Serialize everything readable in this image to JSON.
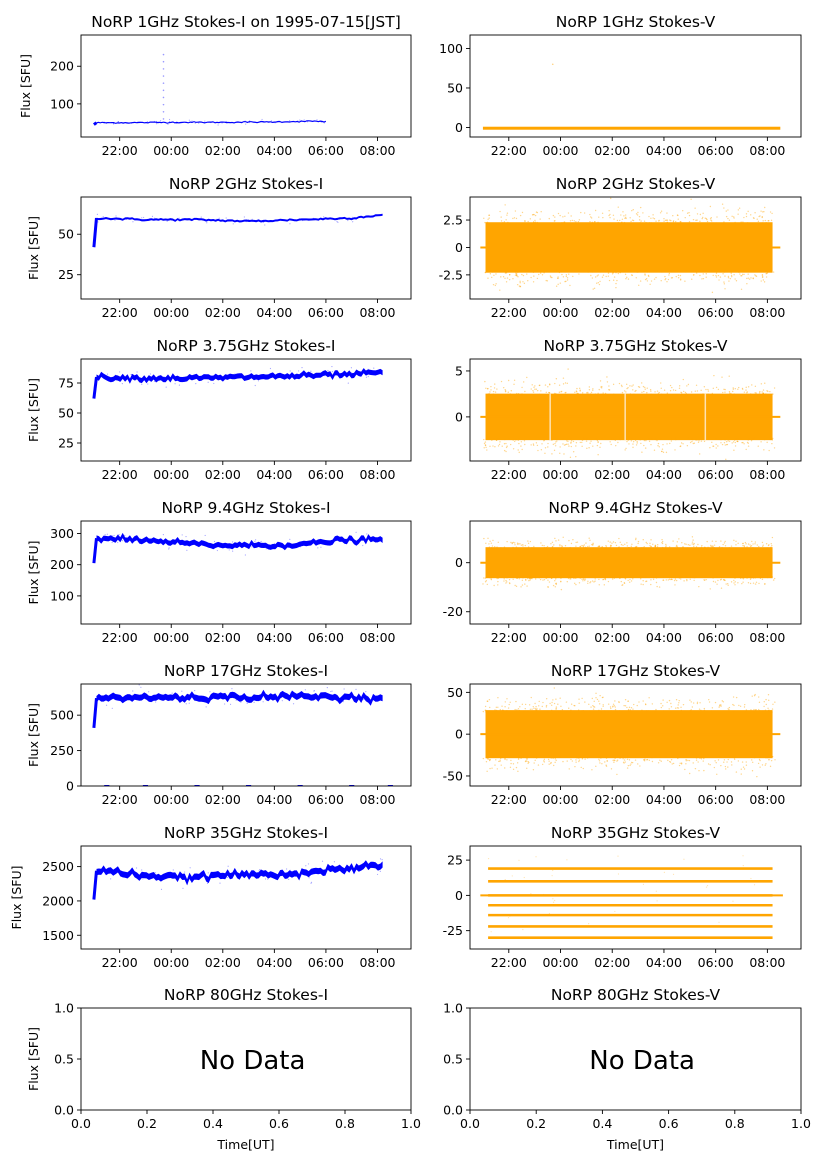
{
  "figure": {
    "x_axis_label": "Time[UT]",
    "no_data_text": "No Data",
    "colors": {
      "stokes_i": "#0000ff",
      "stokes_v": "#ffa500"
    }
  },
  "chart_data": [
    {
      "type": "scatter",
      "title": "NoRP 1GHz Stokes-I on 1995-07-15[JST]",
      "ylabel": "Flux [SFU]",
      "xticks": [
        "22:00",
        "00:00",
        "02:00",
        "04:00",
        "06:00",
        "08:00"
      ],
      "xlim": [
        -3.5,
        9.3
      ],
      "ylim": [
        12,
        283
      ],
      "yticks": [
        100,
        200
      ],
      "series": [
        {
          "x": [
            -3.0,
            -2.9,
            -1.5,
            0,
            2,
            4,
            5.5,
            6.0
          ],
          "y": [
            45,
            50,
            50,
            51,
            51,
            52,
            54,
            53
          ]
        }
      ]
    },
    {
      "type": "scatter",
      "title": "NoRP 1GHz Stokes-V",
      "ylabel": "",
      "xticks": [
        "22:00",
        "00:00",
        "02:00",
        "04:00",
        "06:00",
        "08:00"
      ],
      "xlim": [
        -3.5,
        9.3
      ],
      "ylim": [
        -12,
        117
      ],
      "yticks": [
        0,
        50,
        100
      ],
      "series": [
        {
          "x": [
            -3.0,
            0,
            2,
            4,
            5.5,
            6.5,
            8.5
          ],
          "y": [
            -1,
            -1,
            -1,
            -1,
            1,
            0,
            0
          ]
        }
      ]
    },
    {
      "type": "scatter",
      "title": "NoRP 2GHz Stokes-I",
      "ylabel": "Flux [SFU]",
      "xticks": [
        "22:00",
        "00:00",
        "02:00",
        "04:00",
        "06:00",
        "08:00"
      ],
      "xlim": [
        -3.5,
        9.3
      ],
      "ylim": [
        10,
        73
      ],
      "yticks": [
        25,
        50
      ],
      "series": [
        {
          "x": [
            -3.0,
            -2.9,
            -1,
            1,
            3,
            5,
            7,
            8.2
          ],
          "y": [
            42,
            60,
            59,
            59,
            58,
            59,
            60,
            62
          ]
        }
      ]
    },
    {
      "type": "scatter",
      "title": "NoRP 2GHz Stokes-V",
      "ylabel": "",
      "xticks": [
        "22:00",
        "00:00",
        "02:00",
        "04:00",
        "06:00",
        "08:00"
      ],
      "xlim": [
        -3.5,
        9.3
      ],
      "ylim": [
        -4.7,
        4.6
      ],
      "yticks": [
        2.5,
        0.0,
        -2.5
      ],
      "series": [
        {
          "x": [
            -3.0,
            8.2
          ],
          "y": [
            0,
            0
          ]
        }
      ]
    },
    {
      "type": "scatter",
      "title": "NoRP 3.75GHz Stokes-I",
      "ylabel": "Flux [SFU]",
      "xticks": [
        "22:00",
        "00:00",
        "02:00",
        "04:00",
        "06:00",
        "08:00"
      ],
      "xlim": [
        -3.5,
        9.3
      ],
      "ylim": [
        10,
        95
      ],
      "yticks": [
        25,
        50,
        75
      ],
      "series": [
        {
          "x": [
            -3.0,
            -2.9,
            -1,
            1,
            3,
            5,
            7,
            8.2
          ],
          "y": [
            62,
            80,
            79,
            79,
            80,
            81,
            82,
            84
          ]
        }
      ]
    },
    {
      "type": "scatter",
      "title": "NoRP 3.75GHz Stokes-V",
      "ylabel": "",
      "xticks": [
        "22:00",
        "00:00",
        "02:00",
        "04:00",
        "06:00",
        "08:00"
      ],
      "xlim": [
        -3.5,
        9.3
      ],
      "ylim": [
        -4.8,
        6.3
      ],
      "yticks": [
        5,
        0
      ],
      "series": [
        {
          "x": [
            -3.0,
            8.2
          ],
          "y": [
            0,
            0
          ]
        }
      ]
    },
    {
      "type": "scatter",
      "title": "NoRP 9.4GHz Stokes-I",
      "ylabel": "Flux [SFU]",
      "xticks": [
        "22:00",
        "00:00",
        "02:00",
        "04:00",
        "06:00",
        "08:00"
      ],
      "xlim": [
        -3.5,
        9.3
      ],
      "ylim": [
        10,
        340
      ],
      "yticks": [
        100,
        200,
        300
      ],
      "series": [
        {
          "x": [
            -3.0,
            -2.9,
            -1,
            0.5,
            2,
            4,
            5.5,
            6.5,
            8.2
          ],
          "y": [
            205,
            285,
            278,
            268,
            262,
            262,
            268,
            278,
            280
          ]
        }
      ]
    },
    {
      "type": "scatter",
      "title": "NoRP 9.4GHz Stokes-V",
      "ylabel": "",
      "xticks": [
        "22:00",
        "00:00",
        "02:00",
        "04:00",
        "06:00",
        "08:00"
      ],
      "xlim": [
        -3.5,
        9.3
      ],
      "ylim": [
        -25,
        17
      ],
      "yticks": [
        0,
        -20
      ],
      "series": [
        {
          "x": [
            -3.0,
            8.2
          ],
          "y": [
            0,
            0
          ]
        }
      ]
    },
    {
      "type": "scatter",
      "title": "NoRP 17GHz Stokes-I",
      "ylabel": "Flux [SFU]",
      "xticks": [
        "22:00",
        "00:00",
        "02:00",
        "04:00",
        "06:00",
        "08:00"
      ],
      "xlim": [
        -3.5,
        9.3
      ],
      "ylim": [
        0,
        720
      ],
      "yticks": [
        0,
        250,
        500
      ],
      "series": [
        {
          "x": [
            -3.0,
            -2.9,
            -1,
            1,
            3,
            5,
            7,
            8.2
          ],
          "y": [
            410,
            620,
            625,
            625,
            628,
            632,
            628,
            615
          ]
        }
      ]
    },
    {
      "type": "scatter",
      "title": "NoRP 17GHz Stokes-V",
      "ylabel": "",
      "xticks": [
        "22:00",
        "00:00",
        "02:00",
        "04:00",
        "06:00",
        "08:00"
      ],
      "xlim": [
        -3.5,
        9.3
      ],
      "ylim": [
        -62,
        60
      ],
      "yticks": [
        50,
        0,
        -50
      ],
      "series": [
        {
          "x": [
            -3.0,
            8.2
          ],
          "y": [
            0,
            0
          ]
        }
      ]
    },
    {
      "type": "scatter",
      "title": "NoRP 35GHz Stokes-I",
      "ylabel": "Flux [SFU]",
      "xticks": [
        "22:00",
        "00:00",
        "02:00",
        "04:00",
        "06:00",
        "08:00"
      ],
      "xlim": [
        -3.5,
        9.3
      ],
      "ylim": [
        1300,
        2800
      ],
      "yticks": [
        1500,
        2000,
        2500
      ],
      "series": [
        {
          "x": [
            -3.0,
            -2.9,
            -2,
            -1,
            0,
            1,
            2,
            3,
            4,
            5,
            6,
            7,
            8,
            8.2
          ],
          "y": [
            2020,
            2440,
            2420,
            2370,
            2340,
            2340,
            2380,
            2380,
            2390,
            2410,
            2440,
            2470,
            2510,
            2510
          ]
        }
      ]
    },
    {
      "type": "scatter",
      "title": "NoRP 35GHz Stokes-V",
      "ylabel": "",
      "xticks": [
        "22:00",
        "00:00",
        "02:00",
        "04:00",
        "06:00",
        "08:00"
      ],
      "xlim": [
        -3.5,
        9.3
      ],
      "ylim": [
        -38,
        35
      ],
      "yticks": [
        25,
        0,
        -25
      ],
      "series": [
        {
          "x": [
            -3.0,
            8.2
          ],
          "y": [
            0,
            0
          ]
        }
      ]
    },
    {
      "type": "scatter",
      "title": "NoRP 80GHz Stokes-I",
      "ylabel": "Flux [SFU]",
      "xticks": [
        "0.0",
        "0.2",
        "0.4",
        "0.6",
        "0.8",
        "1.0"
      ],
      "xlim": [
        0,
        1
      ],
      "ylim": [
        0,
        1
      ],
      "yticks": [
        "0.0",
        "0.5",
        "1.0"
      ],
      "series": []
    },
    {
      "type": "scatter",
      "title": "NoRP 80GHz Stokes-V",
      "ylabel": "",
      "xticks": [
        "0.0",
        "0.2",
        "0.4",
        "0.6",
        "0.8",
        "1.0"
      ],
      "xlim": [
        0,
        1
      ],
      "ylim": [
        0,
        1
      ],
      "yticks": [
        "0.0",
        "0.5",
        "1.0"
      ],
      "series": []
    }
  ]
}
